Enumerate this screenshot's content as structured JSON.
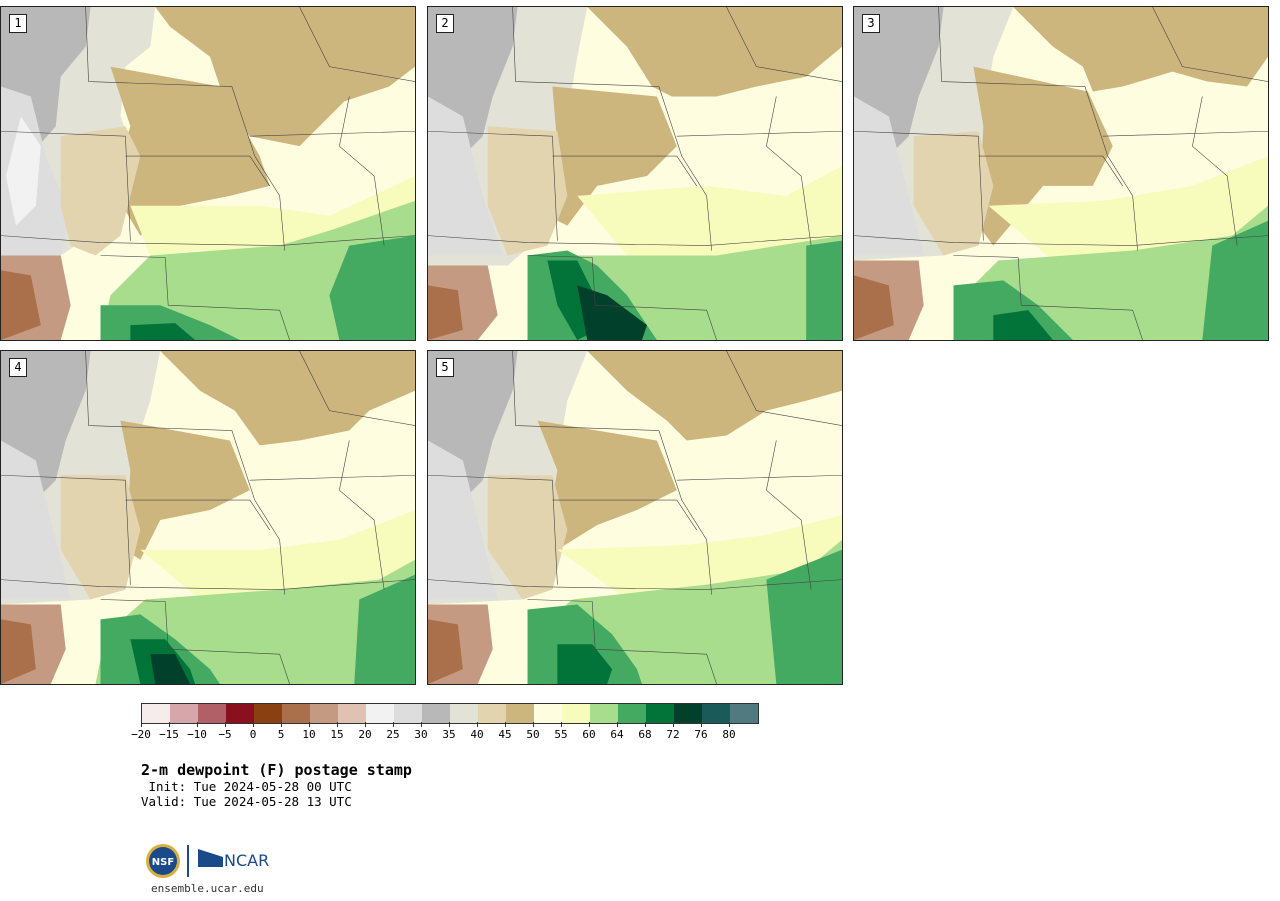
{
  "panels": [
    {
      "label": "1"
    },
    {
      "label": "2"
    },
    {
      "label": "3"
    },
    {
      "label": "4"
    },
    {
      "label": "5"
    }
  ],
  "legend": {
    "colors": [
      "#f6ecec",
      "#d6a6aa",
      "#b06066",
      "#8a1020",
      "#8a4010",
      "#aa704c",
      "#c49a82",
      "#dfc2b2",
      "#f2f2f2",
      "#dddddd",
      "#b8b8b8",
      "#e2e2d6",
      "#e3d4b0",
      "#cdb57e",
      "#fffde0",
      "#f7fbbc",
      "#a8dd8e",
      "#44aa62",
      "#02743a",
      "#01402a",
      "#1a5a58",
      "#507a80"
    ],
    "tick_labels": [
      "−20",
      "−15",
      "−10",
      "−5",
      "0",
      "5",
      "10",
      "15",
      "20",
      "25",
      "30",
      "35",
      "40",
      "45",
      "50",
      "55",
      "60",
      "64",
      "68",
      "72",
      "76",
      "80"
    ]
  },
  "title": "2-m dewpoint (F) postage stamp",
  "init": " Init: Tue 2024-05-28 00 UTC",
  "valid": "Valid: Tue 2024-05-28 13 UTC",
  "logos": {
    "nsf_text": "NSF",
    "ncar_text": "NCAR"
  },
  "site": "ensemble.ucar.edu"
}
